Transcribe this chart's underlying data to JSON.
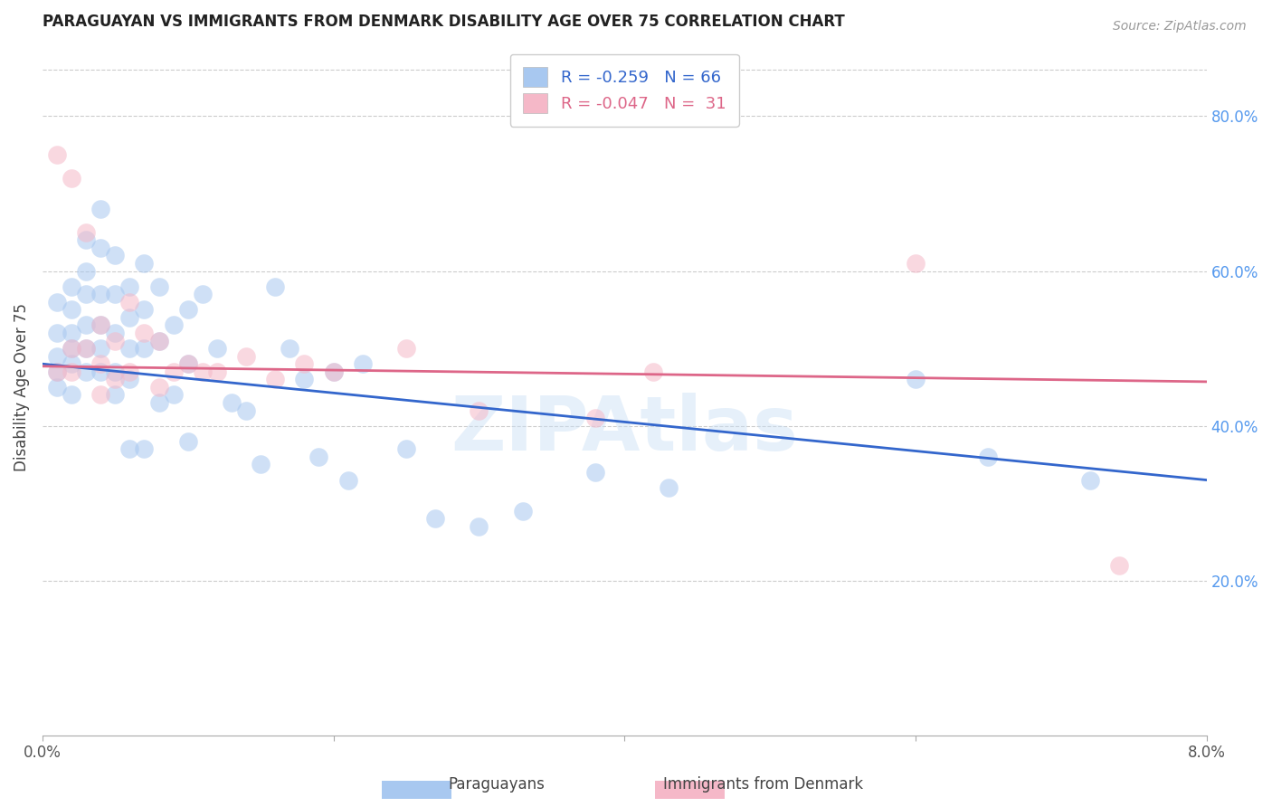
{
  "title": "PARAGUAYAN VS IMMIGRANTS FROM DENMARK DISABILITY AGE OVER 75 CORRELATION CHART",
  "source": "Source: ZipAtlas.com",
  "ylabel": "Disability Age Over 75",
  "watermark": "ZIPAtlas",
  "legend_blue_r": "R = -0.259",
  "legend_blue_n": "N = 66",
  "legend_pink_r": "R = -0.047",
  "legend_pink_n": "N =  31",
  "x_min": 0.0,
  "x_max": 0.08,
  "y_min": 0.0,
  "y_max": 0.9,
  "y_ticks": [
    0.2,
    0.4,
    0.6,
    0.8
  ],
  "y_tick_labels": [
    "20.0%",
    "40.0%",
    "60.0%",
    "80.0%"
  ],
  "x_ticks": [
    0.0,
    0.02,
    0.04,
    0.06,
    0.08
  ],
  "x_tick_labels": [
    "0.0%",
    "",
    "",
    "",
    "8.0%"
  ],
  "blue_color": "#a8c8f0",
  "pink_color": "#f5b8c8",
  "blue_line_color": "#3366cc",
  "pink_line_color": "#dd6688",
  "grid_color": "#cccccc",
  "right_axis_color": "#5599ee",
  "blue_line_intercept": 0.48,
  "blue_line_slope": -1.875,
  "pink_line_intercept": 0.477,
  "pink_line_slope": -0.25,
  "paraguayans_x": [
    0.001,
    0.001,
    0.001,
    0.001,
    0.001,
    0.002,
    0.002,
    0.002,
    0.002,
    0.002,
    0.002,
    0.003,
    0.003,
    0.003,
    0.003,
    0.003,
    0.003,
    0.004,
    0.004,
    0.004,
    0.004,
    0.004,
    0.004,
    0.005,
    0.005,
    0.005,
    0.005,
    0.005,
    0.006,
    0.006,
    0.006,
    0.006,
    0.006,
    0.007,
    0.007,
    0.007,
    0.007,
    0.008,
    0.008,
    0.008,
    0.009,
    0.009,
    0.01,
    0.01,
    0.01,
    0.011,
    0.012,
    0.013,
    0.014,
    0.015,
    0.016,
    0.017,
    0.018,
    0.019,
    0.02,
    0.021,
    0.022,
    0.025,
    0.027,
    0.03,
    0.033,
    0.038,
    0.043,
    0.06,
    0.065,
    0.072
  ],
  "paraguayans_y": [
    0.56,
    0.52,
    0.49,
    0.47,
    0.45,
    0.58,
    0.55,
    0.52,
    0.5,
    0.48,
    0.44,
    0.64,
    0.6,
    0.57,
    0.53,
    0.5,
    0.47,
    0.68,
    0.63,
    0.57,
    0.53,
    0.5,
    0.47,
    0.62,
    0.57,
    0.52,
    0.47,
    0.44,
    0.58,
    0.54,
    0.5,
    0.46,
    0.37,
    0.61,
    0.55,
    0.5,
    0.37,
    0.58,
    0.51,
    0.43,
    0.53,
    0.44,
    0.55,
    0.48,
    0.38,
    0.57,
    0.5,
    0.43,
    0.42,
    0.35,
    0.58,
    0.5,
    0.46,
    0.36,
    0.47,
    0.33,
    0.48,
    0.37,
    0.28,
    0.27,
    0.29,
    0.34,
    0.32,
    0.46,
    0.36,
    0.33
  ],
  "denmark_x": [
    0.001,
    0.001,
    0.002,
    0.002,
    0.002,
    0.003,
    0.003,
    0.004,
    0.004,
    0.004,
    0.005,
    0.005,
    0.006,
    0.006,
    0.007,
    0.008,
    0.008,
    0.009,
    0.01,
    0.011,
    0.012,
    0.014,
    0.016,
    0.018,
    0.02,
    0.025,
    0.03,
    0.038,
    0.042,
    0.06,
    0.074
  ],
  "denmark_y": [
    0.75,
    0.47,
    0.72,
    0.5,
    0.47,
    0.65,
    0.5,
    0.53,
    0.48,
    0.44,
    0.51,
    0.46,
    0.56,
    0.47,
    0.52,
    0.51,
    0.45,
    0.47,
    0.48,
    0.47,
    0.47,
    0.49,
    0.46,
    0.48,
    0.47,
    0.5,
    0.42,
    0.41,
    0.47,
    0.61,
    0.22
  ]
}
